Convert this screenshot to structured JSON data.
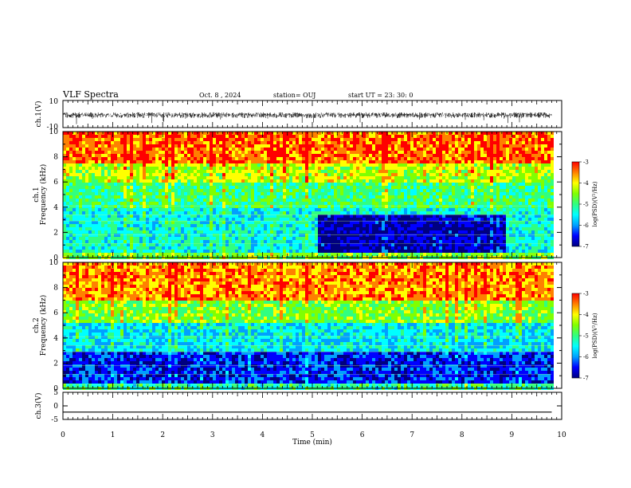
{
  "header": {
    "title": "VLF Spectra",
    "date": "Oct. 8 , 2024",
    "station": "station= OUJ",
    "start": "start UT = 23: 30: 0"
  },
  "chart_data": [
    {
      "type": "line",
      "id": "ch1-waveform",
      "ylabel": "ch.1(V)",
      "ylim": [
        -10,
        10
      ],
      "yticks": [
        "10",
        "-10"
      ],
      "xlim": [
        0,
        10
      ],
      "x_data_extent": [
        0,
        9.8
      ],
      "description_of_series": "noise waveform ranging roughly -6 to +2 V"
    },
    {
      "type": "heatmap",
      "id": "ch1-spectrogram",
      "ylabel": "Frequency (kHz)",
      "channel_label": "ch.1",
      "ylim": [
        0,
        10
      ],
      "yticks": [
        "0",
        "2",
        "4",
        "6",
        "8",
        "10"
      ],
      "xlim": [
        0,
        10
      ],
      "x_data_extent": [
        0,
        9.8
      ],
      "colorbar": {
        "label": "log(PSD)(V²/Hz)",
        "ticks": [
          "-3",
          "-4",
          "-5",
          "-6",
          "-7"
        ],
        "range": [
          -7,
          -3
        ]
      },
      "bands": [
        {
          "f": [
            0,
            0.5
          ],
          "logpsd": -4.6
        },
        {
          "f": [
            0.5,
            4
          ],
          "logpsd": -5.4
        },
        {
          "f": [
            4,
            6
          ],
          "logpsd": -5.0
        },
        {
          "f": [
            6,
            7.5
          ],
          "logpsd": -4.3
        },
        {
          "f": [
            7.5,
            10
          ],
          "logpsd": -3.4
        }
      ],
      "low_band_dip": {
        "t": [
          5.1,
          8.85
        ],
        "f": [
          0.3,
          3.3
        ],
        "logpsd": -6.8
      }
    },
    {
      "type": "heatmap",
      "id": "ch2-spectrogram",
      "ylabel": "Frequency (kHz)",
      "channel_label": "ch.2",
      "ylim": [
        0,
        10
      ],
      "yticks": [
        "0",
        "2",
        "4",
        "6",
        "8",
        "10"
      ],
      "xlim": [
        0,
        10
      ],
      "x_data_extent": [
        0,
        9.8
      ],
      "colorbar": {
        "label": "log(PSD)(V²/Hz)",
        "ticks": [
          "-3",
          "-4",
          "-5",
          "-6",
          "-7"
        ],
        "range": [
          -7,
          -3
        ]
      },
      "bands": [
        {
          "f": [
            0,
            0.5
          ],
          "logpsd": -5.2
        },
        {
          "f": [
            0.5,
            2.8
          ],
          "logpsd": -6.5
        },
        {
          "f": [
            2.8,
            5.2
          ],
          "logpsd": -5.6
        },
        {
          "f": [
            5.2,
            7.0
          ],
          "logpsd": -4.6
        },
        {
          "f": [
            7.0,
            10
          ],
          "logpsd": -3.6
        }
      ]
    },
    {
      "type": "line",
      "id": "ch3-waveform",
      "ylabel": "ch.3(V)",
      "ylim": [
        -5,
        5
      ],
      "yticks": [
        "5",
        "0",
        "-5"
      ],
      "xlim": [
        0,
        10
      ],
      "xlabel": "Time (min)",
      "xticks": [
        "0",
        "1",
        "2",
        "3",
        "4",
        "5",
        "6",
        "7",
        "8",
        "9",
        "10"
      ],
      "x": [
        0,
        9.8
      ],
      "y": [
        -2.3,
        -2.3
      ]
    }
  ],
  "colors": {
    "colormap": [
      "#000080",
      "#0000ff",
      "#00a0ff",
      "#00ffff",
      "#30ff80",
      "#80ff00",
      "#ffff00",
      "#ff8000",
      "#ff0000"
    ]
  }
}
